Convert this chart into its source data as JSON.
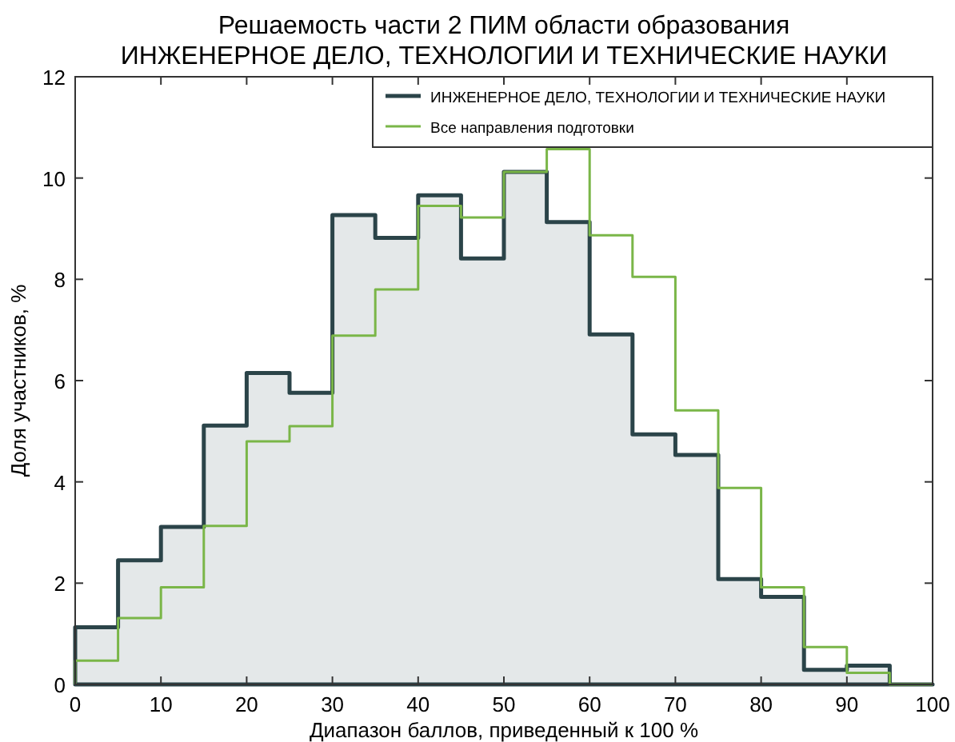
{
  "chart_data": {
    "type": "histogram",
    "title": "Решаемость части 2 ПИМ области образования\nИНЖЕНЕРНОЕ ДЕЛО, ТЕХНОЛОГИИ И ТЕХНИЧЕСКИЕ НАУКИ",
    "xlabel": "Диапазон баллов, приведенный к 100 %",
    "ylabel": "Доля участников, %",
    "bins": [
      0,
      5,
      10,
      15,
      20,
      25,
      30,
      35,
      40,
      45,
      50,
      55,
      60,
      65,
      70,
      75,
      80,
      85,
      90,
      95,
      100
    ],
    "series": [
      {
        "name": "ИНЖЕНЕРНОЕ ДЕЛО, ТЕХНОЛОГИИ И ТЕХНИЧЕСКИЕ НАУКИ",
        "color": "#2b4449",
        "values": [
          1.13,
          2.45,
          3.11,
          5.11,
          6.15,
          5.76,
          9.27,
          8.82,
          9.66,
          8.41,
          10.12,
          9.13,
          6.91,
          4.94,
          4.53,
          2.08,
          1.73,
          0.29,
          0.37,
          0
        ]
      },
      {
        "name": "Все направления подготовки",
        "color": "#7ab648",
        "values": [
          0.47,
          1.31,
          1.92,
          3.13,
          4.8,
          5.1,
          6.89,
          7.8,
          9.45,
          9.22,
          10.12,
          10.57,
          8.87,
          8.05,
          5.41,
          3.88,
          1.92,
          0.74,
          0.23,
          0
        ]
      }
    ],
    "xlim": [
      0,
      100
    ],
    "xticks": [
      0,
      10,
      20,
      30,
      40,
      50,
      60,
      70,
      80,
      90,
      100
    ],
    "ylim": [
      0,
      12
    ],
    "yticks": [
      0,
      2,
      4,
      6,
      8,
      10,
      12
    ],
    "legend": "top right",
    "grid": false
  }
}
